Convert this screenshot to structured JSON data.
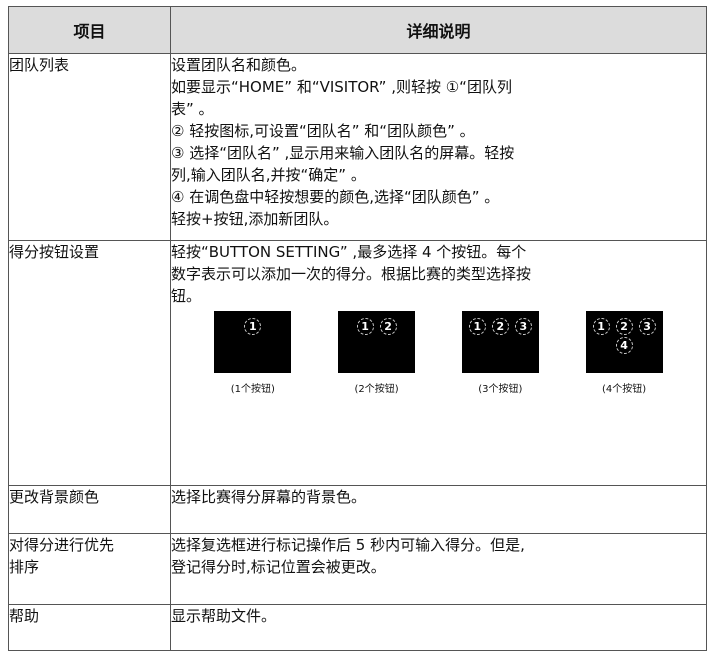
{
  "header": {
    "item": "项目",
    "description": "详细说明"
  },
  "rows": [
    {
      "item": "团队列表",
      "lines": [
        "设置团队名和颜色。",
        "如要显示“HOME” 和“VISITOR” ,则轻按 ①“团队列",
        "表” 。",
        "② 轻按图标,可设置“团队名” 和“团队颜色” 。",
        "③ 选择“团队名” ,显示用来输入团队名的屏幕。轻按",
        "列,输入团队名,并按“确定” 。",
        "④ 在调色盘中轻按想要的颜色,选择“团队颜色” 。",
        "轻按+按钮,添加新团队。"
      ]
    },
    {
      "item": "得分按钮设置",
      "lines": [
        "轻按“BUTTON SETTING” ,最多选择 4 个按钮。每个",
        "数字表示可以添加一次的得分。根据比赛的类型选择按",
        "钮。"
      ],
      "images": [
        {
          "buttons": [
            "1"
          ],
          "caption": "(1个按钮)"
        },
        {
          "buttons": [
            "1",
            "2"
          ],
          "caption": "(2个按钮)"
        },
        {
          "buttons": [
            "1",
            "2",
            "3"
          ],
          "caption": "(3个按钮)"
        },
        {
          "buttons": [
            "1",
            "2",
            "3",
            "4"
          ],
          "caption": "(4个按钮)"
        }
      ]
    },
    {
      "item": "更改背景颜色",
      "lines": [
        "选择比赛得分屏幕的背景色。"
      ]
    },
    {
      "item": "对得分进行优先排序",
      "lines": [
        "选择复选框进行标记操作后 5 秒内可输入得分。但是,",
        "登记得分时,标记位置会被更改。"
      ]
    },
    {
      "item": "帮助",
      "lines": [
        "显示帮助文件。"
      ]
    }
  ]
}
